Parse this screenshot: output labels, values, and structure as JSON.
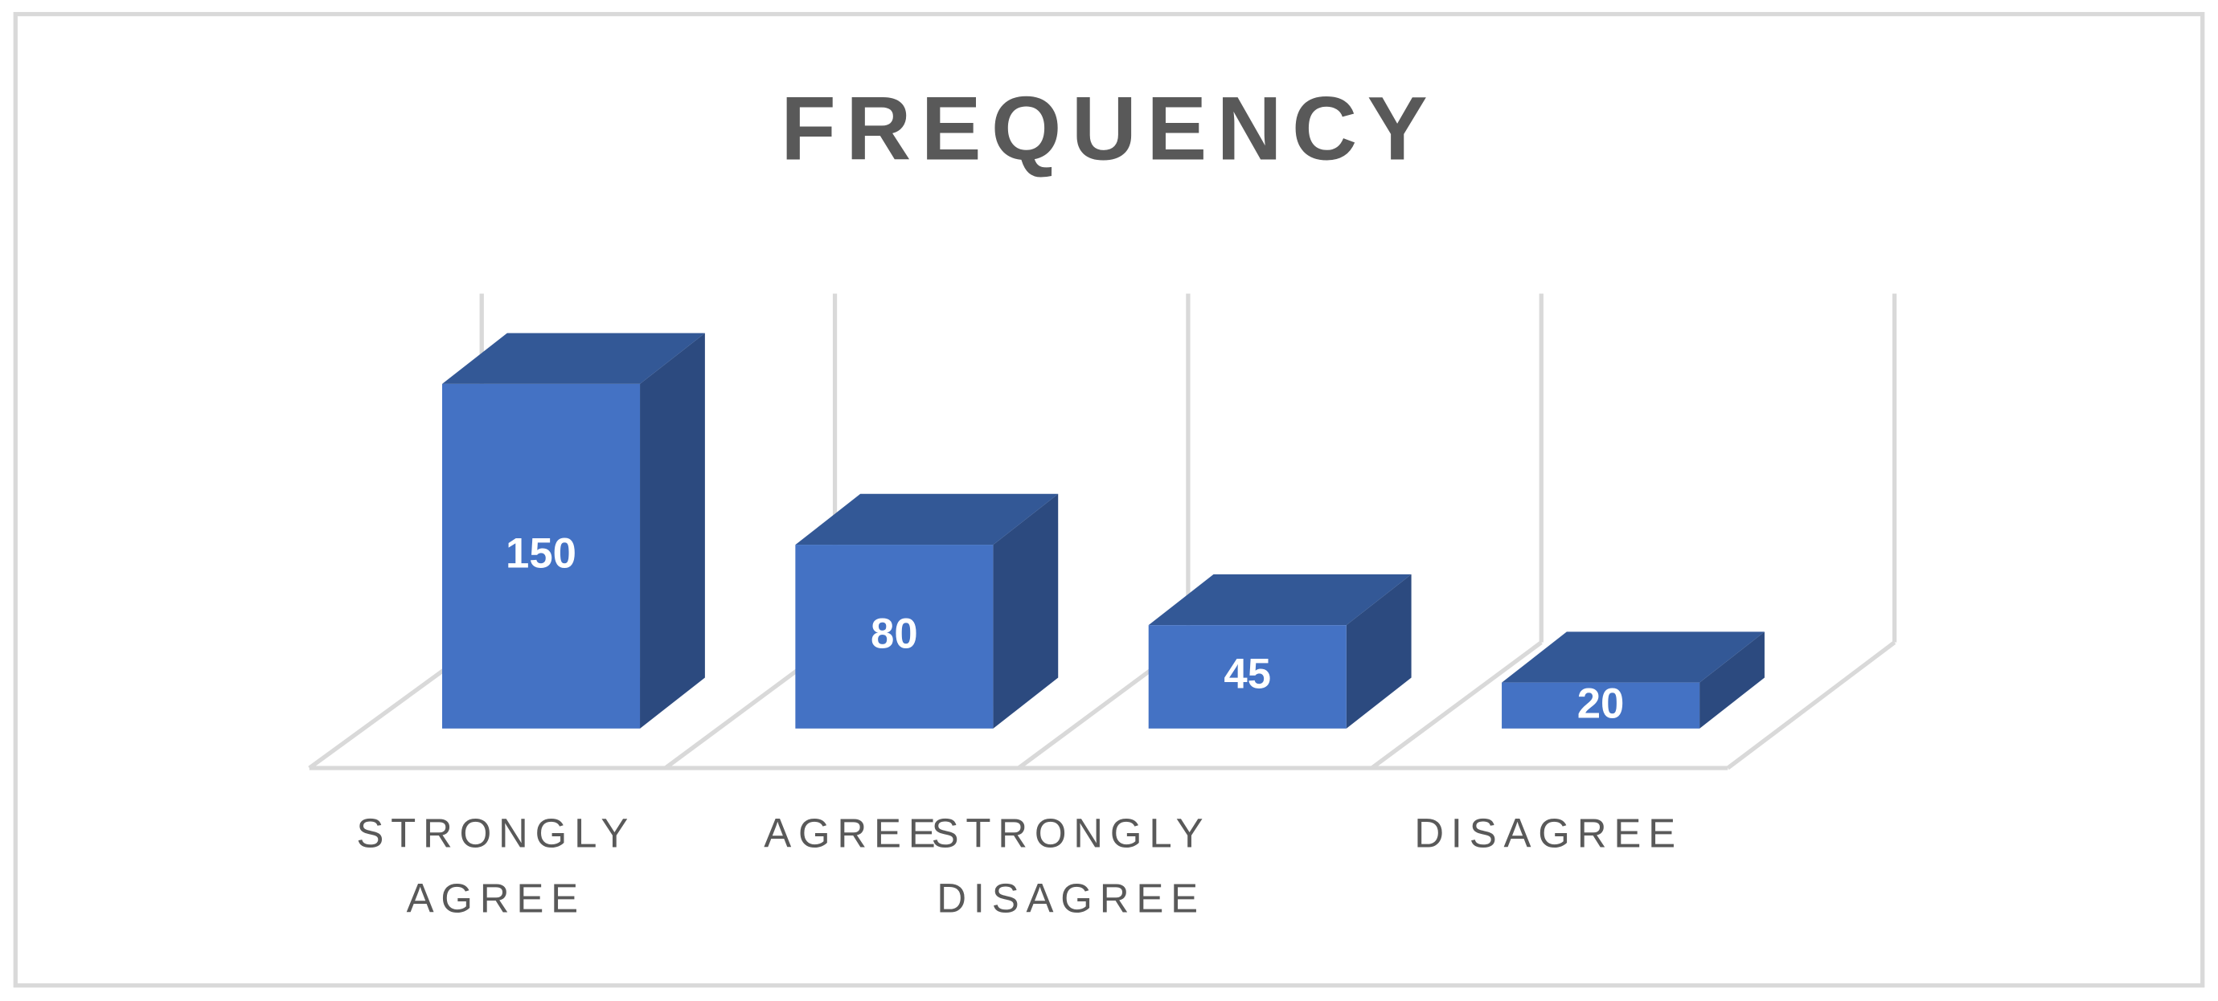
{
  "chart_data": {
    "type": "bar3d",
    "title": "FREQUENCY",
    "categories": [
      "STRONGLY AGREE",
      "AGREE",
      "STRONGLY DISAGREE",
      "DISAGREE"
    ],
    "values": [
      150,
      80,
      45,
      20
    ],
    "color": "#4472c4"
  }
}
